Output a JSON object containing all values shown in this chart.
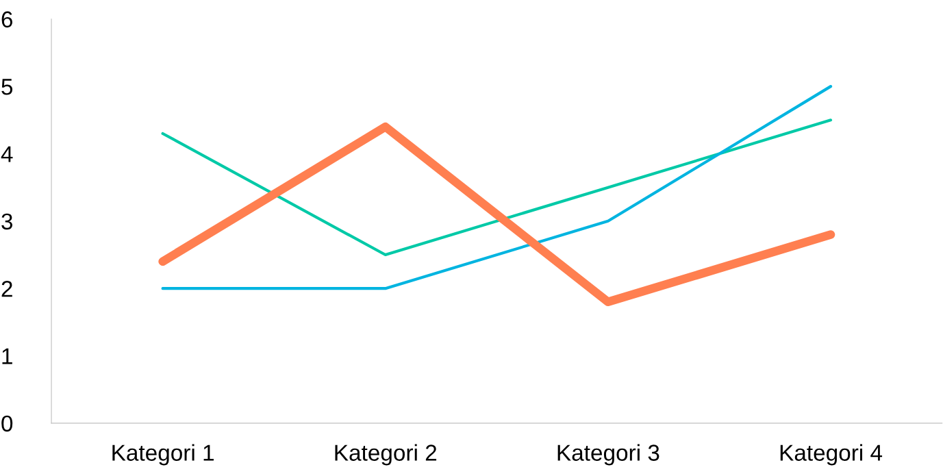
{
  "chart_data": {
    "type": "line",
    "categories": [
      "Kategori 1",
      "Kategori 2",
      "Kategori 3",
      "Kategori 4"
    ],
    "series": [
      {
        "color": "#00c9a7",
        "values": [
          4.3,
          2.5,
          3.5,
          4.5
        ]
      },
      {
        "color": "#00b4e0",
        "values": [
          2,
          2,
          3,
          5
        ]
      },
      {
        "color": "#ff7f50",
        "values": [
          2.4,
          4.4,
          1.8,
          2.8
        ]
      }
    ],
    "ylim": [
      0,
      6
    ],
    "yticks": [
      0,
      1,
      2,
      3,
      4,
      5,
      6
    ],
    "marker": "none",
    "line_style": "solid"
  }
}
